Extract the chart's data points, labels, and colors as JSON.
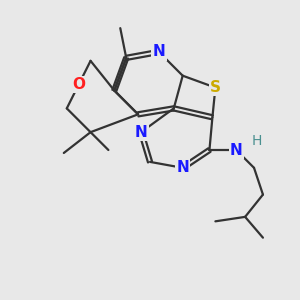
{
  "background_color": "#e8e8e8",
  "atom_colors": {
    "N": "#1a1aff",
    "O": "#ff2020",
    "S": "#ccaa00",
    "H": "#4a9090",
    "C": "#333333"
  },
  "bond_lw": 1.6,
  "font_size": 11
}
